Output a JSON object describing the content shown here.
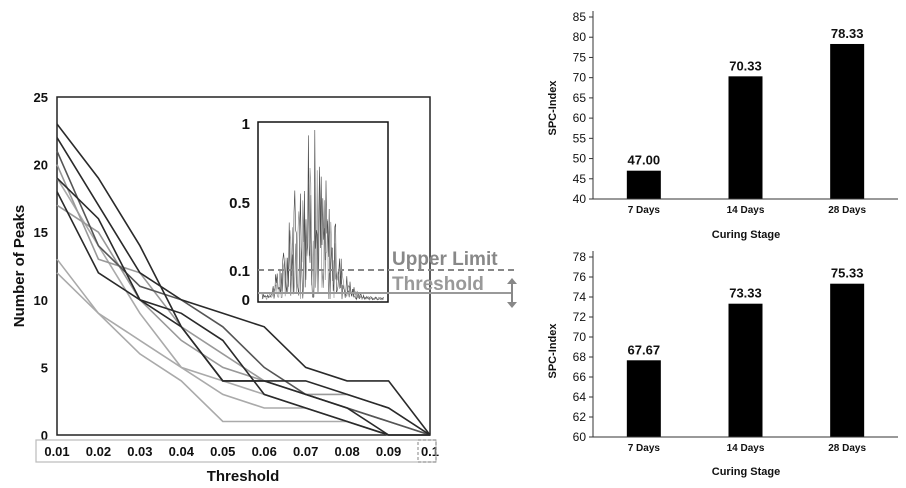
{
  "chart_data": [
    {
      "type": "line",
      "xlabel": "Threshold",
      "ylabel": "Number of Peaks",
      "xlim": [
        0.01,
        0.1
      ],
      "ylim": [
        0,
        25
      ],
      "x": [
        0.01,
        0.02,
        0.03,
        0.04,
        0.05,
        0.06,
        0.07,
        0.08,
        0.09,
        0.1
      ],
      "x_tick_labels": [
        "0.01",
        "0.02",
        "0.03",
        "0.04",
        "0.05",
        "0.06",
        "0.07",
        "0.08",
        "0.09",
        "0.1"
      ],
      "y_tick_labels": [
        "0",
        "5",
        "10",
        "15",
        "20",
        "25"
      ],
      "series": [
        {
          "color": "#2a2a2a",
          "values": [
            23,
            19,
            14,
            8,
            4,
            4,
            3,
            2,
            0,
            0
          ]
        },
        {
          "color": "#2a2a2a",
          "values": [
            22,
            17,
            12,
            10,
            9,
            8,
            5,
            4,
            4,
            0
          ]
        },
        {
          "color": "#2a2a2a",
          "values": [
            19,
            16,
            10,
            9,
            7,
            3,
            2,
            1,
            0,
            0
          ]
        },
        {
          "color": "#2a2a2a",
          "values": [
            18,
            12,
            10,
            8,
            4,
            4,
            4,
            3,
            2,
            0
          ]
        },
        {
          "color": "#555555",
          "values": [
            21,
            14,
            11,
            10,
            8,
            5,
            3,
            2,
            1,
            0
          ]
        },
        {
          "color": "#999999",
          "values": [
            20,
            13,
            12,
            8,
            6,
            4,
            3,
            2,
            1,
            0
          ]
        },
        {
          "color": "#999999",
          "values": [
            17,
            15,
            10,
            7,
            5,
            4,
            3,
            3,
            2,
            0
          ]
        },
        {
          "color": "#aaaaaa",
          "values": [
            13,
            9,
            7,
            5,
            3,
            2,
            2,
            1,
            0,
            0
          ]
        },
        {
          "color": "#aaaaaa",
          "values": [
            12,
            9,
            6,
            4,
            1,
            1,
            1,
            1,
            0,
            0
          ]
        },
        {
          "color": "#aaaaaa",
          "values": [
            19,
            14,
            9,
            5,
            4,
            3,
            2,
            1,
            0,
            0
          ]
        }
      ],
      "inset": {
        "y_tick_labels": [
          "0",
          "0.1",
          "0.5",
          "1"
        ],
        "upper_limit_label": "Upper Limit",
        "threshold_label": "Threshold",
        "colors": {
          "upper_limit": "#888888",
          "threshold": "#999999"
        }
      }
    },
    {
      "type": "bar",
      "categories": [
        "7 Days",
        "14 Days",
        "28 Days"
      ],
      "values": [
        47.0,
        70.33,
        78.33
      ],
      "data_labels": [
        "47.00",
        "70.33",
        "78.33"
      ],
      "xlabel": "Curing Stage",
      "ylabel": "SPC-Index",
      "ylim": [
        40,
        85
      ],
      "y_tick_labels": [
        "40",
        "45",
        "50",
        "55",
        "60",
        "65",
        "70",
        "75",
        "80",
        "85"
      ],
      "color": "#000000"
    },
    {
      "type": "bar",
      "categories": [
        "7 Days",
        "14 Days",
        "28 Days"
      ],
      "values": [
        67.67,
        73.33,
        75.33
      ],
      "data_labels": [
        "67.67",
        "73.33",
        "75.33"
      ],
      "xlabel": "Curing Stage",
      "ylabel": "SPC-Index",
      "ylim": [
        60,
        78
      ],
      "y_tick_labels": [
        "60",
        "62",
        "64",
        "66",
        "68",
        "70",
        "72",
        "74",
        "76",
        "78"
      ],
      "color": "#000000"
    }
  ]
}
